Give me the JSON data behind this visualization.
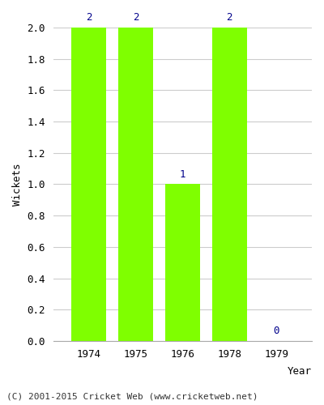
{
  "years": [
    "1974",
    "1975",
    "1976",
    "1978",
    "1979"
  ],
  "values": [
    2,
    2,
    1,
    2,
    0
  ],
  "bar_color": "#7fff00",
  "bar_edge_color": "#7fff00",
  "ylabel": "Wickets",
  "xlabel": "Year",
  "ylim": [
    0,
    2.0
  ],
  "yticks": [
    0.0,
    0.2,
    0.4,
    0.6,
    0.8,
    1.0,
    1.2,
    1.4,
    1.6,
    1.8,
    2.0
  ],
  "annotation_color": "#00008b",
  "annotation_fontsize": 9,
  "axis_label_fontsize": 9,
  "tick_fontsize": 9,
  "footer_text": "(C) 2001-2015 Cricket Web (www.cricketweb.net)",
  "footer_fontsize": 8,
  "footer_color": "#333333",
  "background_color": "#ffffff",
  "grid_color": "#cccccc",
  "bar_width": 0.75
}
